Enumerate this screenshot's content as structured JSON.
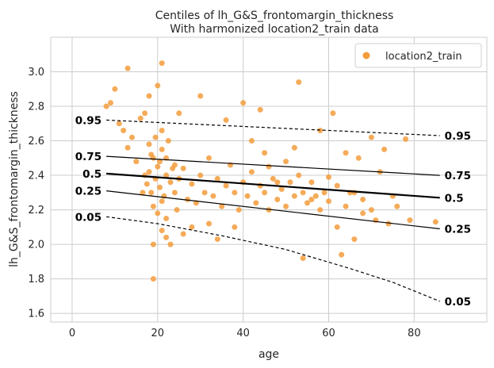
{
  "chart_data": {
    "type": "scatter",
    "title": "Centiles of lh_G&S_frontomargin_thickness",
    "subtitle": "With harmonized location2_train data",
    "xlabel": "age",
    "ylabel": "lh_G&S_frontomargin_thickness",
    "xlim": [
      -5,
      97
    ],
    "ylim": [
      1.55,
      3.2
    ],
    "x_ticks": [
      0,
      20,
      40,
      60,
      80
    ],
    "y_ticks": [
      1.6,
      1.8,
      2.0,
      2.2,
      2.4,
      2.6,
      2.8,
      3.0
    ],
    "x_tick_labels": [
      "0",
      "20",
      "40",
      "60",
      "80"
    ],
    "y_tick_labels": [
      "1.6",
      "1.8",
      "2.0",
      "2.2",
      "2.4",
      "2.6",
      "2.8",
      "3.0"
    ],
    "grid": true,
    "legend": {
      "position": "top-right",
      "entries": [
        "location2_train"
      ]
    },
    "scatter_color": "#f39c3c",
    "centiles": [
      {
        "label": "0.05",
        "width": 1.2,
        "dashed": true,
        "points": [
          [
            8,
            2.16
          ],
          [
            20,
            2.12
          ],
          [
            35,
            2.05
          ],
          [
            50,
            1.97
          ],
          [
            65,
            1.86
          ],
          [
            75,
            1.78
          ],
          [
            86,
            1.67
          ]
        ]
      },
      {
        "label": "0.25",
        "width": 1.2,
        "dashed": false,
        "points": [
          [
            8,
            2.31
          ],
          [
            86,
            2.09
          ]
        ]
      },
      {
        "label": "0.5",
        "width": 2.2,
        "dashed": false,
        "points": [
          [
            8,
            2.41
          ],
          [
            86,
            2.27
          ]
        ]
      },
      {
        "label": "0.75",
        "width": 1.2,
        "dashed": false,
        "points": [
          [
            8,
            2.51
          ],
          [
            86,
            2.4
          ]
        ]
      },
      {
        "label": "0.95",
        "width": 1.2,
        "dashed": true,
        "points": [
          [
            8,
            2.72
          ],
          [
            86,
            2.63
          ]
        ]
      }
    ],
    "series": [
      {
        "name": "location2_train",
        "points": [
          [
            8,
            2.8
          ],
          [
            9,
            2.82
          ],
          [
            10,
            2.9
          ],
          [
            11,
            2.7
          ],
          [
            12,
            2.66
          ],
          [
            13,
            3.02
          ],
          [
            13,
            2.56
          ],
          [
            14,
            2.62
          ],
          [
            15,
            2.48
          ],
          [
            16,
            2.73
          ],
          [
            17,
            2.76
          ],
          [
            18,
            2.86
          ],
          [
            19,
            1.8
          ],
          [
            19,
            2.0
          ],
          [
            20,
            2.92
          ],
          [
            21,
            3.05
          ],
          [
            21,
            2.08
          ],
          [
            22,
            2.04
          ],
          [
            23,
            2.0
          ],
          [
            24,
            2.46
          ],
          [
            25,
            2.76
          ],
          [
            26,
            2.06
          ],
          [
            28,
            2.1
          ],
          [
            30,
            2.86
          ],
          [
            32,
            2.12
          ],
          [
            34,
            2.03
          ],
          [
            36,
            2.72
          ],
          [
            38,
            2.1
          ],
          [
            40,
            2.82
          ],
          [
            42,
            2.6
          ],
          [
            44,
            2.78
          ],
          [
            45,
            2.53
          ],
          [
            46,
            2.45
          ],
          [
            48,
            2.36
          ],
          [
            50,
            2.48
          ],
          [
            52,
            2.56
          ],
          [
            53,
            2.94
          ],
          [
            54,
            1.92
          ],
          [
            56,
            2.26
          ],
          [
            58,
            2.66
          ],
          [
            60,
            2.39
          ],
          [
            61,
            2.76
          ],
          [
            62,
            2.1
          ],
          [
            63,
            1.94
          ],
          [
            64,
            2.53
          ],
          [
            65,
            2.3
          ],
          [
            66,
            2.03
          ],
          [
            67,
            2.5
          ],
          [
            68,
            2.18
          ],
          [
            70,
            2.62
          ],
          [
            71,
            2.14
          ],
          [
            72,
            2.42
          ],
          [
            73,
            2.55
          ],
          [
            74,
            2.12
          ],
          [
            75,
            2.28
          ],
          [
            76,
            2.22
          ],
          [
            78,
            2.61
          ],
          [
            79,
            2.14
          ],
          [
            85,
            2.13
          ],
          [
            17.5,
            2.35
          ],
          [
            18,
            2.42
          ],
          [
            18.5,
            2.3
          ],
          [
            19,
            2.5
          ],
          [
            19.5,
            2.38
          ],
          [
            20,
            2.45
          ],
          [
            20.5,
            2.33
          ],
          [
            21,
            2.55
          ],
          [
            21.5,
            2.28
          ],
          [
            22,
            2.4
          ],
          [
            22.5,
            2.6
          ],
          [
            23,
            2.36
          ],
          [
            19,
            2.22
          ],
          [
            20,
            2.18
          ],
          [
            21,
            2.25
          ],
          [
            22,
            2.15
          ],
          [
            18,
            2.58
          ],
          [
            19.5,
            2.62
          ],
          [
            21,
            2.66
          ],
          [
            22,
            2.5
          ],
          [
            23.5,
            2.44
          ],
          [
            24,
            2.3
          ],
          [
            20.5,
            2.48
          ],
          [
            18.5,
            2.52
          ],
          [
            17,
            2.4
          ],
          [
            16.5,
            2.3
          ],
          [
            24.5,
            2.2
          ],
          [
            25,
            2.38
          ],
          [
            26,
            2.44
          ],
          [
            27,
            2.26
          ],
          [
            28,
            2.35
          ],
          [
            29,
            2.24
          ],
          [
            30,
            2.4
          ],
          [
            31,
            2.3
          ],
          [
            32,
            2.5
          ],
          [
            33,
            2.28
          ],
          [
            34,
            2.38
          ],
          [
            35,
            2.22
          ],
          [
            36,
            2.34
          ],
          [
            37,
            2.46
          ],
          [
            38,
            2.3
          ],
          [
            39,
            2.2
          ],
          [
            40,
            2.36
          ],
          [
            41,
            2.28
          ],
          [
            42,
            2.42
          ],
          [
            43,
            2.24
          ],
          [
            44,
            2.34
          ],
          [
            45,
            2.3
          ],
          [
            46,
            2.2
          ],
          [
            47,
            2.38
          ],
          [
            48,
            2.26
          ],
          [
            49,
            2.32
          ],
          [
            50,
            2.22
          ],
          [
            51,
            2.36
          ],
          [
            52,
            2.28
          ],
          [
            53,
            2.4
          ],
          [
            54,
            2.3
          ],
          [
            55,
            2.24
          ],
          [
            56,
            2.36
          ],
          [
            57,
            2.28
          ],
          [
            58,
            2.2
          ],
          [
            59,
            2.3
          ],
          [
            60,
            2.25
          ],
          [
            62,
            2.34
          ],
          [
            64,
            2.22
          ],
          [
            66,
            2.3
          ],
          [
            68,
            2.26
          ],
          [
            70,
            2.2
          ]
        ]
      }
    ]
  }
}
